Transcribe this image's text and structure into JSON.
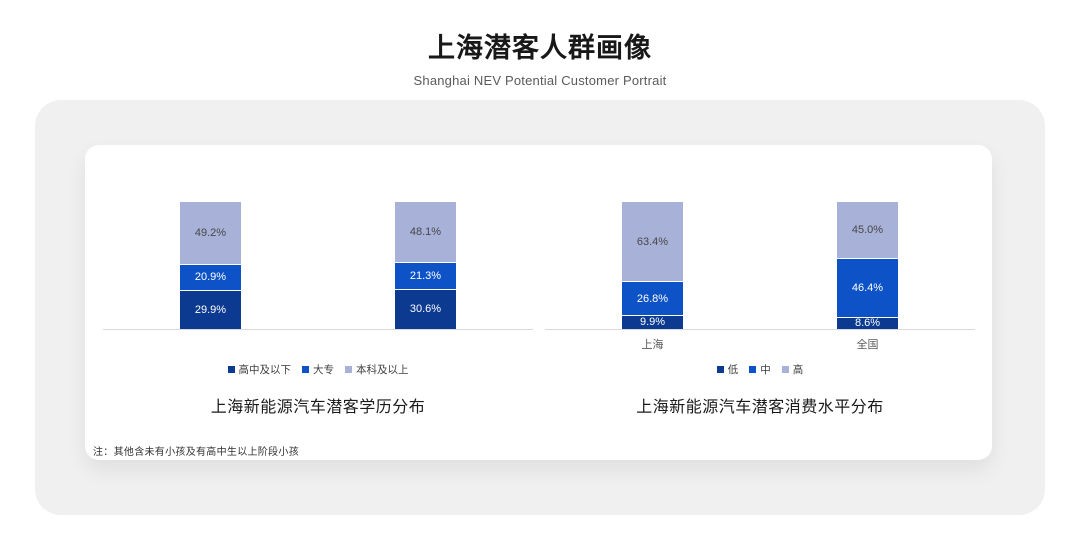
{
  "header": {
    "title": "上海潜客人群画像",
    "subtitle": "Shanghai NEV Potential Customer Portrait"
  },
  "footnote": "注：其他含未有小孩及有高中生以上阶段小孩",
  "colors": {
    "panel_bg": "#f0f0f1",
    "card_bg": "#ffffff",
    "axis_line": "#d9d9d9",
    "series_dark": "#0c3a90",
    "series_medium": "#0d52c6",
    "series_light": "#a8b1d8",
    "label_on_dark": "#ffffff",
    "label_on_light": "#474747"
  },
  "chart_data": [
    {
      "type": "bar",
      "stacked": true,
      "title": "上海新能源汽车潜客学历分布",
      "categories": [
        "",
        ""
      ],
      "show_category_labels": false,
      "series": [
        {
          "name": "高中及以下",
          "values": [
            29.9,
            30.6
          ],
          "color": "#0c3a90",
          "label_color": "#ffffff"
        },
        {
          "name": "大专",
          "values": [
            20.9,
            21.3
          ],
          "color": "#0d52c6",
          "label_color": "#ffffff"
        },
        {
          "name": "本科及以上",
          "values": [
            49.2,
            48.1
          ],
          "color": "#a8b1d8",
          "label_color": "#474747"
        }
      ],
      "ylim": [
        0,
        100
      ],
      "value_suffix": "%",
      "legend_position": "bottom",
      "grid": false
    },
    {
      "type": "bar",
      "stacked": true,
      "title": "上海新能源汽车潜客消费水平分布",
      "categories": [
        "上海",
        "全国"
      ],
      "show_category_labels": true,
      "series": [
        {
          "name": "低",
          "values": [
            9.9,
            8.6
          ],
          "color": "#0c3a90",
          "label_color": "#ffffff"
        },
        {
          "name": "中",
          "values": [
            26.8,
            46.4
          ],
          "color": "#0d52c6",
          "label_color": "#ffffff"
        },
        {
          "name": "高",
          "values": [
            63.4,
            45.0
          ],
          "color": "#a8b1d8",
          "label_color": "#474747"
        }
      ],
      "ylim": [
        0,
        100
      ],
      "value_suffix": "%",
      "legend_position": "bottom",
      "grid": false
    }
  ]
}
